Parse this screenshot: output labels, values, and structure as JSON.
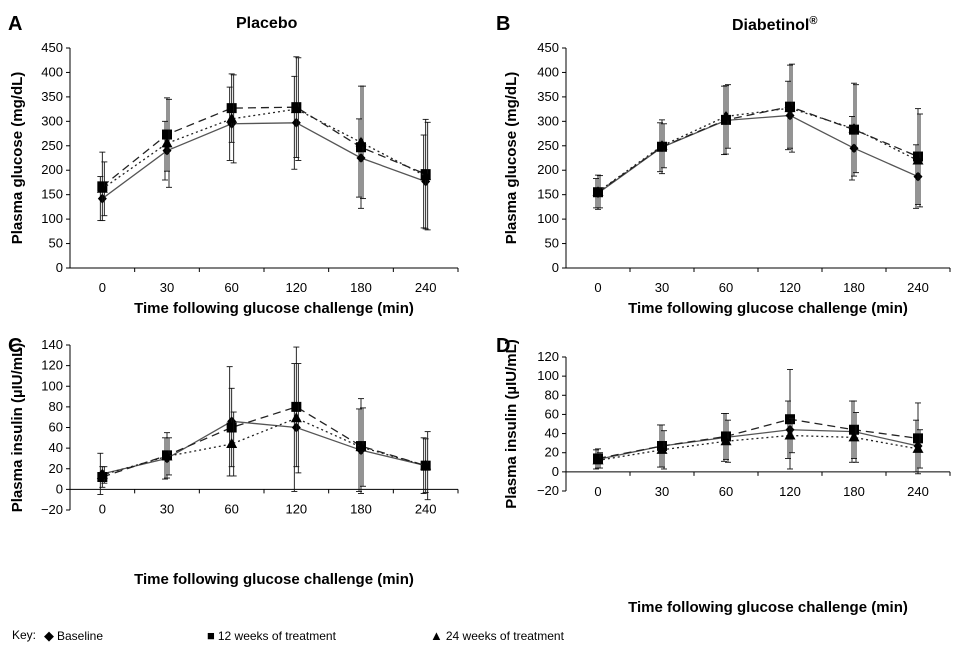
{
  "key": {
    "prefix": "Key:",
    "items": [
      {
        "symbol": "◆",
        "label": "Baseline",
        "icon": "diamond-icon"
      },
      {
        "symbol": "■",
        "label": "12 weeks of treatment",
        "icon": "square-icon"
      },
      {
        "symbol": "▲",
        "label": "24 weeks of treatment",
        "icon": "triangle-icon"
      }
    ]
  },
  "chart_data": [
    {
      "panel": "A",
      "type": "line",
      "title": "Placebo",
      "title_sup": "",
      "xlabel": "Time following glucose challenge (min)",
      "ylabel": "Plasma glucose (mg/dL)",
      "categories": [
        "0",
        "30",
        "60",
        "120",
        "180",
        "240"
      ],
      "ylim": [
        0,
        450
      ],
      "yticks": [
        "0",
        "50",
        "100",
        "150",
        "200",
        "250",
        "300",
        "350",
        "400",
        "450"
      ],
      "series": [
        {
          "marker": "diamond",
          "line": "solid",
          "values": [
            142,
            240,
            295,
            297,
            225,
            177
          ],
          "err": [
            45,
            60,
            75,
            95,
            80,
            95
          ]
        },
        {
          "marker": "square",
          "line": "dashed",
          "values": [
            167,
            273,
            327,
            329,
            247,
            192
          ],
          "err": [
            70,
            75,
            70,
            103,
            125,
            112
          ]
        },
        {
          "marker": "triangle",
          "line": "dotted",
          "values": [
            162,
            255,
            305,
            325,
            257,
            188
          ],
          "err": [
            55,
            90,
            90,
            105,
            115,
            110
          ]
        }
      ]
    },
    {
      "panel": "B",
      "type": "line",
      "title": "Diabetinol",
      "title_sup": "®",
      "xlabel": "Time following glucose challenge (min)",
      "ylabel": "Plasma glucose (mg/dL)",
      "categories": [
        "0",
        "30",
        "60",
        "120",
        "180",
        "240"
      ],
      "ylim": [
        0,
        450
      ],
      "yticks": [
        "0",
        "50",
        "100",
        "150",
        "200",
        "250",
        "300",
        "350",
        "400",
        "450"
      ],
      "series": [
        {
          "marker": "diamond",
          "line": "solid",
          "values": [
            153,
            247,
            302,
            312,
            245,
            187
          ],
          "err": [
            30,
            50,
            70,
            70,
            65,
            65
          ]
        },
        {
          "marker": "square",
          "line": "dashed",
          "values": [
            155,
            248,
            303,
            330,
            283,
            228
          ],
          "err": [
            35,
            55,
            70,
            85,
            95,
            98
          ]
        },
        {
          "marker": "triangle",
          "line": "dotted",
          "values": [
            156,
            250,
            310,
            327,
            285,
            220
          ],
          "err": [
            33,
            45,
            65,
            90,
            90,
            95
          ]
        }
      ]
    },
    {
      "panel": "C",
      "type": "line",
      "title": "",
      "title_sup": "",
      "xlabel": "Time following glucose challenge (min)",
      "ylabel": "Plasma insulin (µIU/mL)",
      "categories": [
        "0",
        "30",
        "60",
        "120",
        "180",
        "240"
      ],
      "ylim": [
        -20,
        140
      ],
      "yticks": [
        "−20",
        "0",
        "20",
        "40",
        "60",
        "80",
        "100",
        "120",
        "140"
      ],
      "series": [
        {
          "marker": "diamond",
          "line": "solid",
          "values": [
            15,
            30,
            66,
            60,
            38,
            23
          ],
          "err": [
            20,
            20,
            53,
            62,
            40,
            27
          ]
        },
        {
          "marker": "square",
          "line": "dashed",
          "values": [
            12,
            33,
            60,
            80,
            42,
            23
          ],
          "err": [
            10,
            22,
            38,
            58,
            46,
            26
          ]
        },
        {
          "marker": "triangle",
          "line": "dotted",
          "values": [
            14,
            32,
            44,
            69,
            41,
            23
          ],
          "err": [
            8,
            18,
            31,
            53,
            38,
            33
          ]
        }
      ]
    },
    {
      "panel": "D",
      "type": "line",
      "title": "",
      "title_sup": "",
      "xlabel": "Time following glucose challenge (min)",
      "ylabel": "Plasma insulin (µIU/mL)",
      "categories": [
        "0",
        "30",
        "60",
        "120",
        "180",
        "240"
      ],
      "ylim": [
        -20,
        120
      ],
      "yticks": [
        "−20",
        "0",
        "20",
        "40",
        "60",
        "80",
        "100",
        "120"
      ],
      "series": [
        {
          "marker": "diamond",
          "line": "solid",
          "values": [
            13,
            27,
            36,
            44,
            42,
            27
          ],
          "err": [
            10,
            22,
            25,
            30,
            32,
            27
          ]
        },
        {
          "marker": "square",
          "line": "dashed",
          "values": [
            14,
            27,
            37,
            55,
            44,
            35
          ],
          "err": [
            10,
            22,
            24,
            52,
            30,
            37
          ]
        },
        {
          "marker": "triangle",
          "line": "dotted",
          "values": [
            12,
            23,
            32,
            38,
            36,
            24
          ],
          "err": [
            8,
            20,
            22,
            18,
            26,
            20
          ]
        }
      ]
    }
  ]
}
